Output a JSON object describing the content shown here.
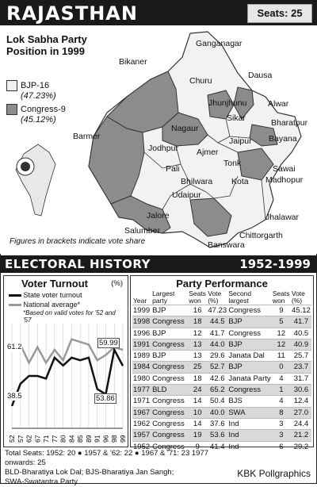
{
  "header": {
    "title": "RAJASTHAN",
    "seats": "Seats: 25"
  },
  "map": {
    "title": "Lok Sabha Party Position in 1999",
    "legend": [
      {
        "label": "BJP-16",
        "share": "(47.23%)",
        "color": "#f2f2f2"
      },
      {
        "label": "Congress-9",
        "share": "(45.12%)",
        "color": "#8c8c8c"
      }
    ],
    "note": "Figures in brackets indicate vote share",
    "districts": [
      "Ganganagar",
      "Bikaner",
      "Churu",
      "Dausa",
      "Alwar",
      "Jhunjhunu",
      "Sikar",
      "Bharatpur",
      "Barmer",
      "Nagaur",
      "Jaipur",
      "Bayana",
      "Jodhpur",
      "Ajmer",
      "Tonk",
      "Sawai",
      "Madhopur",
      "Pali",
      "Bhilwara",
      "Kota",
      "Udaipur",
      "Jalore",
      "Jhalawar",
      "Salumber",
      "Chittorgarth",
      "Banswara"
    ]
  },
  "history": {
    "title": "ELECTORAL HISTORY",
    "years": "1952-1999"
  },
  "turnout": {
    "title": "Voter Turnout",
    "unit": "(%)",
    "legend_state": "State voter turnout",
    "legend_national": "National average*",
    "footnote": "*Based on valid votes for '52 and '57",
    "labels": {
      "l1": "61.2",
      "l2": "59.99",
      "l3": "38.5",
      "l4": "53.86"
    },
    "x_ticks": [
      "52",
      "57",
      "62",
      "67",
      "71",
      "77",
      "80",
      "84",
      "85",
      "89",
      "91",
      "96",
      "98",
      "99"
    ]
  },
  "chart_data": {
    "type": "line",
    "x": [
      "52",
      "57",
      "62",
      "67",
      "71",
      "77",
      "80",
      "84",
      "85",
      "89",
      "91",
      "96",
      "98",
      "99"
    ],
    "series": [
      {
        "name": "State voter turnout",
        "values": [
          38.5,
          47,
          50,
          50,
          49,
          57,
          54,
          57,
          56,
          57,
          45,
          43,
          60,
          53.86
        ]
      },
      {
        "name": "National average*",
        "values": [
          61.2,
          62,
          55,
          61,
          55,
          60,
          56,
          64,
          63,
          62,
          56,
          58,
          61,
          59.99
        ]
      }
    ],
    "ylabel": "(%)"
  },
  "performance": {
    "title": "Party Performance",
    "headers": [
      "Year",
      "Largest party",
      "Seats won",
      "Vote (%)",
      "Second largest",
      "Seats won",
      "Vote (%)"
    ],
    "rows": [
      [
        "1999",
        "BJP",
        "16",
        "47.23",
        "Congress",
        "9",
        "45.12"
      ],
      [
        "1998",
        "Congress",
        "18",
        "44.5",
        "BJP",
        "5",
        "41.7"
      ],
      [
        "1996",
        "BJP",
        "12",
        "41.7",
        "Congress",
        "12",
        "40.5"
      ],
      [
        "1991",
        "Congress",
        "13",
        "44.0",
        "BJP",
        "12",
        "40.9"
      ],
      [
        "1989",
        "BJP",
        "13",
        "29.6",
        "Janata Dal",
        "11",
        "25.7"
      ],
      [
        "1984",
        "Congress",
        "25",
        "52.7",
        "BJP",
        "0",
        "23.7"
      ],
      [
        "1980",
        "Congress",
        "18",
        "42.6",
        "Janata Party",
        "4",
        "31.7"
      ],
      [
        "1977",
        "BLD",
        "24",
        "65.2",
        "Congress",
        "1",
        "30.6"
      ],
      [
        "1971",
        "Congress",
        "14",
        "50.4",
        "BJS",
        "4",
        "12.4"
      ],
      [
        "1967",
        "Congress",
        "10",
        "40.0",
        "SWA",
        "8",
        "27.0"
      ],
      [
        "1962",
        "Congress",
        "14",
        "37.6",
        "Ind",
        "3",
        "24.4"
      ],
      [
        "1957",
        "Congress",
        "19",
        "53.6",
        "Ind",
        "3",
        "21.2"
      ],
      [
        "1952",
        "Congress",
        "9",
        "41.4",
        "Ind",
        "6",
        "29.2"
      ]
    ]
  },
  "footer": {
    "line1": "Total Seats: 1952: 20 ● 1957 & '62: 22 ● 1967 & '71: 23 1977 onwards: 25",
    "line2": "BLD-Bharatiya Lok Dal; BJS-Bharatiya Jan Sangh;",
    "line3": "SWA-Swatantra Party",
    "brand": "KBK Pollgraphics"
  }
}
